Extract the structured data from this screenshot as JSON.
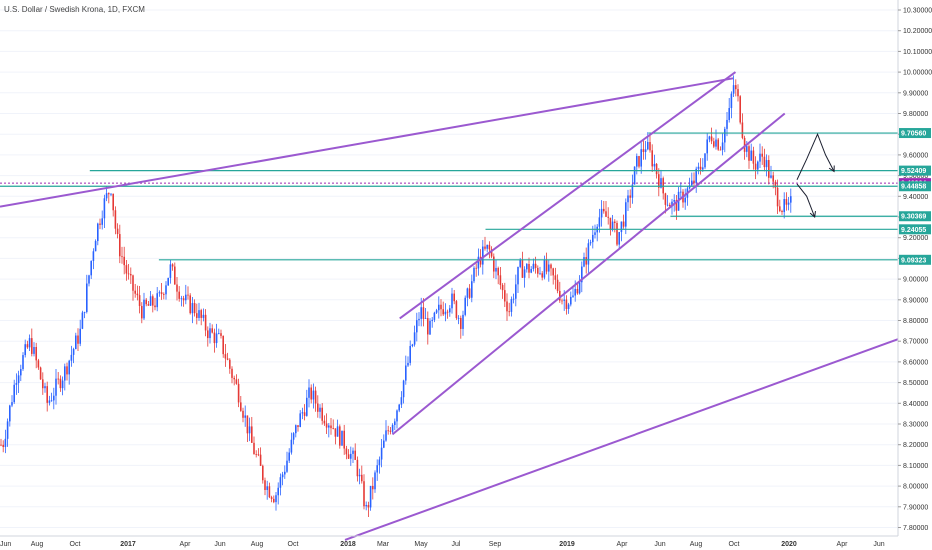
{
  "header": {
    "title": "U.S. Dollar / Swedish Krona, 1D, FXCM"
  },
  "chart_data": {
    "type": "candlestick",
    "title": "U.S. Dollar / Swedish Krona, 1D, FXCM",
    "symbol": "USDSEK",
    "interval": "1D",
    "source": "FXCM",
    "y_axis": {
      "ylim": [
        7.74,
        10.34
      ],
      "ticks": [
        "10.30000",
        "10.20000",
        "10.10000",
        "10.00000",
        "9.90000",
        "9.80000",
        "9.70000",
        "9.60000",
        "9.50000",
        "9.40000",
        "9.30000",
        "9.20000",
        "9.10000",
        "9.00000",
        "8.90000",
        "8.80000",
        "8.70000",
        "8.60000",
        "8.50000",
        "8.40000",
        "8.30000",
        "8.20000",
        "8.10000",
        "8.00000",
        "7.90000",
        "7.80000"
      ]
    },
    "x_axis": {
      "labels": [
        "Jun",
        "Aug",
        "Oct",
        "2017",
        "Apr",
        "Jun",
        "Aug",
        "Oct",
        "2018",
        "Mar",
        "May",
        "Jul",
        "Sep",
        "2019",
        "Apr",
        "Jun",
        "Aug",
        "Oct",
        "2020",
        "Apr",
        "Jun"
      ],
      "bold_labels": [
        "2017",
        "2018",
        "2019",
        "2020"
      ]
    },
    "price_path": [
      [
        "2016-05-25",
        8.2
      ],
      [
        "2016-06-20",
        8.55
      ],
      [
        "2016-07-15",
        8.7
      ],
      [
        "2016-08-15",
        8.4
      ],
      [
        "2016-09-15",
        8.55
      ],
      [
        "2016-10-15",
        8.75
      ],
      [
        "2016-11-10",
        9.2
      ],
      [
        "2016-11-25",
        9.35
      ],
      [
        "2016-12-10",
        9.45
      ],
      [
        "2016-12-20",
        9.2
      ],
      [
        "2017-01-10",
        9.0
      ],
      [
        "2017-02-01",
        8.85
      ],
      [
        "2017-03-01",
        8.9
      ],
      [
        "2017-03-20",
        9.05
      ],
      [
        "2017-04-10",
        8.9
      ],
      [
        "2017-05-01",
        8.85
      ],
      [
        "2017-05-20",
        8.75
      ],
      [
        "2017-06-10",
        8.7
      ],
      [
        "2017-07-10",
        8.45
      ],
      [
        "2017-08-01",
        8.2
      ],
      [
        "2017-08-25",
        8.0
      ],
      [
        "2017-09-08",
        7.95
      ],
      [
        "2017-09-25",
        8.1
      ],
      [
        "2017-10-15",
        8.3
      ],
      [
        "2017-11-05",
        8.45
      ],
      [
        "2017-11-25",
        8.35
      ],
      [
        "2017-12-10",
        8.3
      ],
      [
        "2018-01-01",
        8.2
      ],
      [
        "2018-01-20",
        8.1
      ],
      [
        "2018-02-05",
        7.88
      ],
      [
        "2018-02-20",
        8.05
      ],
      [
        "2018-03-10",
        8.25
      ],
      [
        "2018-03-25",
        8.35
      ],
      [
        "2018-04-15",
        8.6
      ],
      [
        "2018-05-05",
        8.85
      ],
      [
        "2018-05-20",
        8.75
      ],
      [
        "2018-06-05",
        8.85
      ],
      [
        "2018-06-25",
        8.9
      ],
      [
        "2018-07-10",
        8.8
      ],
      [
        "2018-07-25",
        8.95
      ],
      [
        "2018-08-10",
        9.1
      ],
      [
        "2018-08-25",
        9.15
      ],
      [
        "2018-09-10",
        9.0
      ],
      [
        "2018-09-28",
        8.85
      ],
      [
        "2018-10-15",
        9.05
      ],
      [
        "2018-11-05",
        9.05
      ],
      [
        "2018-11-25",
        9.05
      ],
      [
        "2018-12-10",
        9.0
      ],
      [
        "2018-12-25",
        8.9
      ],
      [
        "2019-01-10",
        8.9
      ],
      [
        "2019-02-01",
        9.1
      ],
      [
        "2019-02-20",
        9.3
      ],
      [
        "2019-03-10",
        9.3
      ],
      [
        "2019-03-25",
        9.2
      ],
      [
        "2019-04-10",
        9.35
      ],
      [
        "2019-04-25",
        9.55
      ],
      [
        "2019-05-10",
        9.65
      ],
      [
        "2019-05-25",
        9.55
      ],
      [
        "2019-06-10",
        9.4
      ],
      [
        "2019-06-25",
        9.35
      ],
      [
        "2019-07-10",
        9.4
      ],
      [
        "2019-07-25",
        9.45
      ],
      [
        "2019-08-10",
        9.55
      ],
      [
        "2019-08-25",
        9.7
      ],
      [
        "2019-09-10",
        9.65
      ],
      [
        "2019-09-25",
        9.8
      ],
      [
        "2019-10-01",
        9.95
      ],
      [
        "2019-10-10",
        9.85
      ],
      [
        "2019-10-20",
        9.65
      ],
      [
        "2019-11-05",
        9.55
      ],
      [
        "2019-11-20",
        9.6
      ],
      [
        "2019-12-05",
        9.45
      ],
      [
        "2019-12-20",
        9.35
      ],
      [
        "2020-01-01",
        9.33
      ],
      [
        "2020-01-10",
        9.42
      ],
      [
        "2020-01-15",
        9.46
      ]
    ],
    "horizontal_levels": [
      {
        "value": "9.70560",
        "color": "#26a69a",
        "start": "2019-05-15"
      },
      {
        "value": "9.52409",
        "color": "#26a69a",
        "start": "2016-11-01"
      },
      {
        "value": "9.46364",
        "color": "#9c27b0",
        "dashed": true,
        "start": "2016-05-20"
      },
      {
        "value": "9.44858",
        "color": "#26a69a",
        "start": "2016-05-20"
      },
      {
        "value": "9.30369",
        "color": "#26a69a",
        "start": "2019-06-20"
      },
      {
        "value": "9.24055",
        "color": "#26a69a",
        "start": "2018-08-20"
      },
      {
        "value": "9.09323",
        "color": "#26a69a",
        "start": "2017-03-01"
      }
    ],
    "trend_lines": [
      {
        "from": [
          "2016-05-20",
          9.35
        ],
        "to": [
          "2019-10-01",
          9.97
        ]
      },
      {
        "from": [
          "2018-04-01",
          8.81
        ],
        "to": [
          "2019-10-05",
          10.0
        ]
      },
      {
        "from": [
          "2018-03-20",
          8.25
        ],
        "to": [
          "2019-12-25",
          9.8
        ]
      },
      {
        "from": [
          "2018-01-01",
          7.74
        ],
        "to": [
          "2020-07-10",
          8.71
        ]
      }
    ],
    "projection_arrows": [
      {
        "points": [
          [
            "2020-01-15",
            9.48
          ],
          [
            "2020-02-01",
            9.58
          ],
          [
            "2020-02-20",
            9.7
          ],
          [
            "2020-03-05",
            9.6
          ],
          [
            "2020-03-20",
            9.52
          ]
        ]
      },
      {
        "points": [
          [
            "2020-01-15",
            9.46
          ],
          [
            "2020-02-01",
            9.4
          ],
          [
            "2020-02-15",
            9.3
          ]
        ]
      }
    ],
    "grid": true
  }
}
